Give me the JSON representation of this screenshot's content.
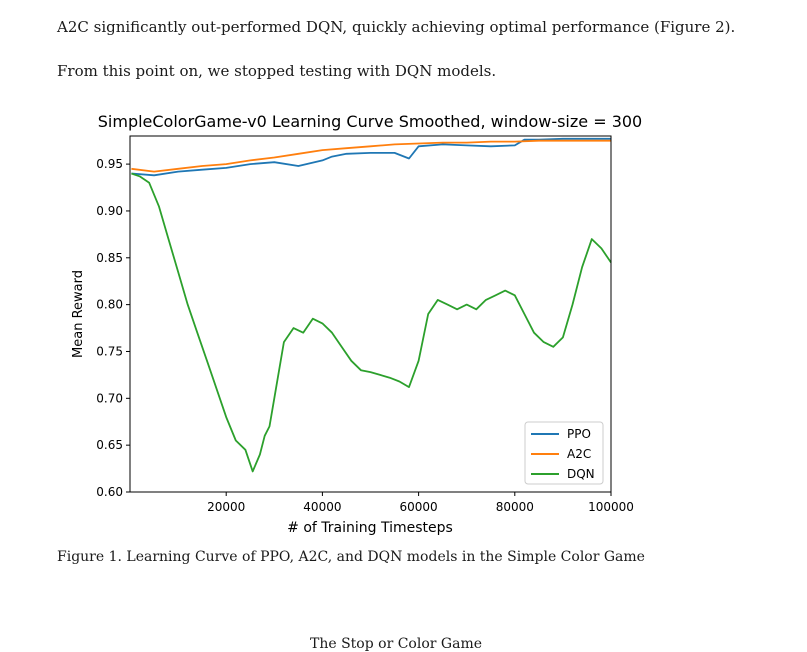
{
  "document": {
    "paragraph_1": "A2C significantly out-performed DQN, quickly achieving optimal performance (Figure 2).",
    "paragraph_2": "From this point on, we stopped testing with DQN models.",
    "figure_caption": "Figure 1. Learning Curve of PPO, A2C, and DQN models in the Simple Color Game",
    "next_section_heading_partial": "The Stop or Color Game"
  },
  "chart_data": {
    "type": "line",
    "title": "SimpleColorGame-v0 Learning Curve Smoothed, window-size = 300",
    "xlabel": "# of Training Timesteps",
    "ylabel": "Mean Reward",
    "xlim": [
      0,
      100000
    ],
    "ylim": [
      0.6,
      0.98
    ],
    "xticks": [
      20000,
      40000,
      60000,
      80000,
      100000
    ],
    "xtick_labels": [
      "20000",
      "40000",
      "60000",
      "80000",
      "100000"
    ],
    "yticks": [
      0.6,
      0.65,
      0.7,
      0.75,
      0.8,
      0.85,
      0.9,
      0.95
    ],
    "ytick_labels": [
      "0.60",
      "0.65",
      "0.70",
      "0.75",
      "0.80",
      "0.85",
      "0.90",
      "0.95"
    ],
    "grid": false,
    "legend_position": "lower-right",
    "series": [
      {
        "name": "PPO",
        "color": "#1f77b4",
        "x": [
          300,
          5000,
          10000,
          15000,
          20000,
          25000,
          30000,
          35000,
          40000,
          42000,
          45000,
          50000,
          55000,
          58000,
          60000,
          65000,
          70000,
          75000,
          80000,
          82000,
          85000,
          90000,
          95000,
          100000
        ],
        "y": [
          0.94,
          0.938,
          0.942,
          0.944,
          0.946,
          0.95,
          0.952,
          0.948,
          0.954,
          0.958,
          0.961,
          0.962,
          0.962,
          0.956,
          0.969,
          0.971,
          0.97,
          0.969,
          0.97,
          0.976,
          0.976,
          0.977,
          0.977,
          0.977
        ]
      },
      {
        "name": "A2C",
        "color": "#ff7f0e",
        "x": [
          300,
          5000,
          10000,
          15000,
          20000,
          25000,
          30000,
          35000,
          40000,
          45000,
          50000,
          55000,
          60000,
          65000,
          70000,
          75000,
          80000,
          85000,
          90000,
          95000,
          100000
        ],
        "y": [
          0.945,
          0.942,
          0.945,
          0.948,
          0.95,
          0.954,
          0.957,
          0.961,
          0.965,
          0.967,
          0.969,
          0.971,
          0.972,
          0.973,
          0.973,
          0.974,
          0.974,
          0.975,
          0.975,
          0.975,
          0.975
        ]
      },
      {
        "name": "DQN",
        "color": "#2ca02c",
        "x": [
          300,
          2000,
          4000,
          6000,
          8000,
          10000,
          12000,
          14000,
          16000,
          18000,
          20000,
          22000,
          24000,
          25500,
          27000,
          28000,
          29000,
          30000,
          32000,
          34000,
          36000,
          38000,
          40000,
          42000,
          44000,
          46000,
          48000,
          50000,
          52000,
          54000,
          56000,
          58000,
          60000,
          62000,
          64000,
          66000,
          68000,
          70000,
          72000,
          74000,
          76000,
          78000,
          80000,
          82000,
          84000,
          86000,
          88000,
          90000,
          92000,
          94000,
          96000,
          98000,
          100000
        ],
        "y": [
          0.94,
          0.937,
          0.93,
          0.905,
          0.87,
          0.835,
          0.8,
          0.77,
          0.74,
          0.71,
          0.68,
          0.655,
          0.645,
          0.622,
          0.64,
          0.66,
          0.67,
          0.7,
          0.76,
          0.775,
          0.77,
          0.785,
          0.78,
          0.77,
          0.755,
          0.74,
          0.73,
          0.728,
          0.725,
          0.722,
          0.718,
          0.712,
          0.74,
          0.79,
          0.805,
          0.8,
          0.795,
          0.8,
          0.795,
          0.805,
          0.81,
          0.815,
          0.81,
          0.79,
          0.77,
          0.76,
          0.755,
          0.765,
          0.8,
          0.84,
          0.87,
          0.86,
          0.845
        ]
      }
    ]
  }
}
